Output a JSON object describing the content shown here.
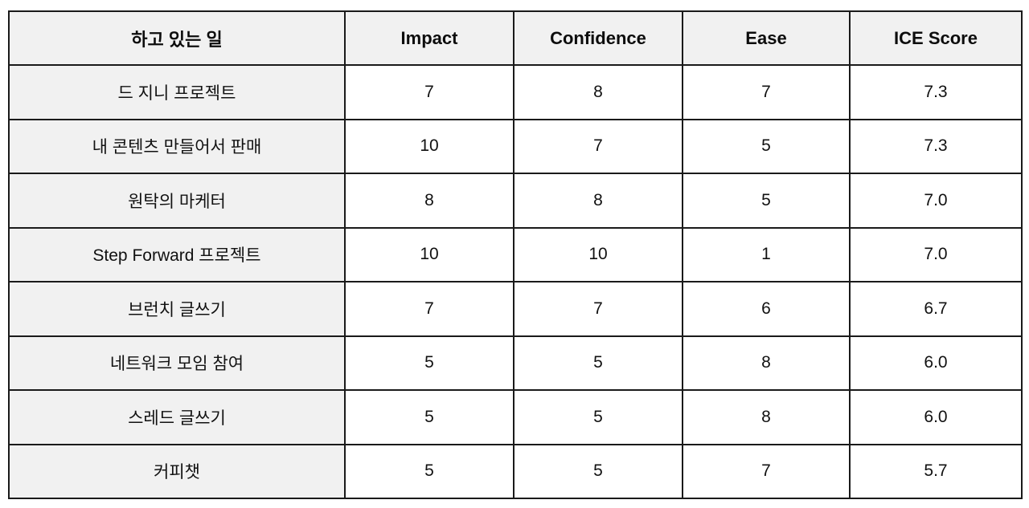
{
  "table": {
    "columns": [
      {
        "key": "task",
        "label": "하고 있는 일"
      },
      {
        "key": "impact",
        "label": "Impact"
      },
      {
        "key": "confidence",
        "label": "Confidence"
      },
      {
        "key": "ease",
        "label": "Ease"
      },
      {
        "key": "ice",
        "label": "ICE Score"
      }
    ],
    "rows": [
      {
        "task": "드 지니 프로젝트",
        "impact": "7",
        "confidence": "8",
        "ease": "7",
        "ice": "7.3"
      },
      {
        "task": "내 콘텐츠 만들어서 판매",
        "impact": "10",
        "confidence": "7",
        "ease": "5",
        "ice": "7.3"
      },
      {
        "task": "원탁의 마케터",
        "impact": "8",
        "confidence": "8",
        "ease": "5",
        "ice": "7.0"
      },
      {
        "task": "Step Forward 프로젝트",
        "impact": "10",
        "confidence": "10",
        "ease": "1",
        "ice": "7.0"
      },
      {
        "task": "브런치 글쓰기",
        "impact": "7",
        "confidence": "7",
        "ease": "6",
        "ice": "6.7"
      },
      {
        "task": "네트워크 모임 참여",
        "impact": "5",
        "confidence": "5",
        "ease": "8",
        "ice": "6.0"
      },
      {
        "task": "스레드 글쓰기",
        "impact": "5",
        "confidence": "5",
        "ease": "8",
        "ice": "6.0"
      },
      {
        "task": "커피챗",
        "impact": "5",
        "confidence": "5",
        "ease": "7",
        "ice": "5.7"
      }
    ]
  },
  "chart_data": {
    "type": "table",
    "title": "ICE Score prioritization table",
    "columns": [
      "하고 있는 일",
      "Impact",
      "Confidence",
      "Ease",
      "ICE Score"
    ],
    "rows": [
      [
        "드 지니 프로젝트",
        7,
        8,
        7,
        7.3
      ],
      [
        "내 콘텐츠 만들어서 판매",
        10,
        7,
        5,
        7.3
      ],
      [
        "원탁의 마케터",
        8,
        8,
        5,
        7.0
      ],
      [
        "Step Forward 프로젝트",
        10,
        10,
        1,
        7.0
      ],
      [
        "브런치 글쓰기",
        7,
        7,
        6,
        6.7
      ],
      [
        "네트워크 모임 참여",
        5,
        5,
        8,
        6.0
      ],
      [
        "스레드 글쓰기",
        5,
        5,
        8,
        6.0
      ],
      [
        "커피챗",
        5,
        5,
        7,
        5.7
      ]
    ]
  },
  "colors": {
    "header_bg": "#f1f1f1",
    "task_column_bg": "#f1f1f1",
    "cell_bg": "#ffffff",
    "border": "#1a1a1a",
    "text": "#111111"
  }
}
